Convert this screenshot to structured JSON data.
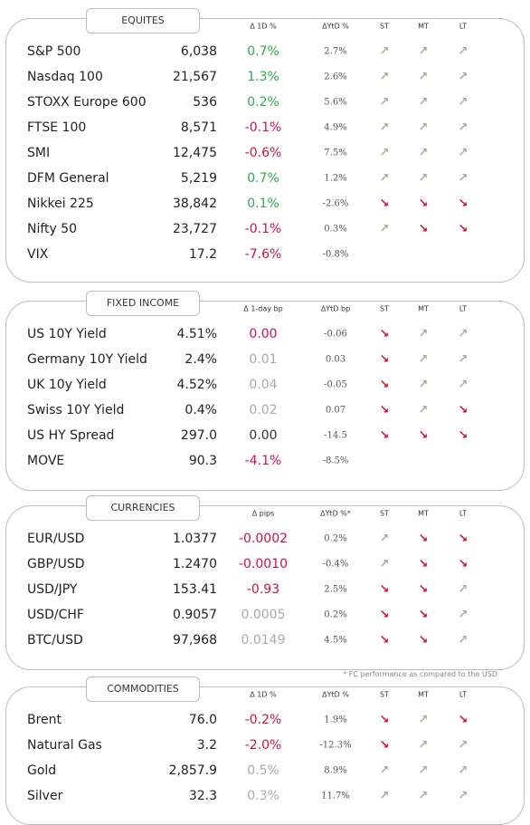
{
  "sections": [
    {
      "title": "EQUITES",
      "headers": [
        "Δ 1D %",
        "ΔYtD %",
        "ST",
        "MT",
        "LT"
      ],
      "rows": [
        {
          "cells": [
            "S&P 500",
            "6,038",
            "0.7%",
            "2.7%",
            "↗",
            "↗",
            "↗"
          ],
          "color": "#2ea84e"
        },
        {
          "cells": [
            "Nasdaq 100",
            "21,567",
            "1.3%",
            "2.6%",
            "↗",
            "↗",
            "↗"
          ],
          "color": "#2ea84e"
        },
        {
          "cells": [
            "STOXX Europe 600",
            "536",
            "0.2%",
            "5.6%",
            "↗",
            "↗",
            "↗"
          ],
          "color": "#2ea84e"
        },
        {
          "cells": [
            "FTSE 100",
            "8,571",
            "-0.1%",
            "4.9%",
            "↗",
            "↗",
            "↗"
          ],
          "color": "#cc1144"
        },
        {
          "cells": [
            "SMI",
            "12,475",
            "-0.6%",
            "7.5%",
            "↗",
            "↗",
            "↗"
          ],
          "color": "#cc1144"
        },
        {
          "cells": [
            "DFM General",
            "5,219",
            "0.7%",
            "1.2%",
            "↗",
            "↗",
            "↗"
          ],
          "color": "#2ea84e"
        },
        {
          "cells": [
            "Nikkei 225",
            "38,842",
            "0.1%",
            "-2.6%",
            "↘",
            "↘",
            "↘"
          ],
          "color": "#2ea84e"
        },
        {
          "cells": [
            "Nifty  50",
            "23,727",
            "-0.1%",
            "0.3%",
            "↗",
            "↘",
            "↘"
          ],
          "color": "#cc1144"
        },
        {
          "cells": [
            "VIX",
            "17.2",
            "-7.6%",
            "-0.8%",
            null,
            null,
            null
          ],
          "color": "#cc1144"
        }
      ]
    },
    {
      "title": "FIXED INCOME",
      "headers": [
        "Δ 1-day bp",
        "ΔYtD bp",
        "ST",
        "MT",
        "LT"
      ],
      "rows": [
        {
          "cells": [
            "US 10Y Yield",
            "4.51%",
            "0.00",
            "-0.06",
            "↘",
            "↗",
            "↗"
          ],
          "color": "#cc1144"
        },
        {
          "cells": [
            "Germany 10Y Yield",
            "2.4%",
            "0.01",
            "0.03",
            "↘",
            "↗",
            "↗"
          ],
          "color": "#aaaaaa"
        },
        {
          "cells": [
            "UK 10y Yield",
            "4.52%",
            "0.04",
            "-0.05",
            "↘",
            "↗",
            "↗"
          ],
          "color": "#aaaaaa"
        },
        {
          "cells": [
            "Swiss 10Y Yield",
            "0.4%",
            "0.02",
            "0.07",
            "↘",
            "↗",
            "↘"
          ],
          "color": "#aaaaaa"
        },
        {
          "cells": [
            "US HY Spread",
            "297.0",
            "0.00",
            "-14.5",
            "↘",
            "↘",
            "↘"
          ],
          "color": "#333333"
        },
        {
          "cells": [
            "MOVE",
            "90.3",
            "-4.1%",
            "-8.5%",
            null,
            null,
            null
          ],
          "color": "#cc1144"
        }
      ]
    },
    {
      "title": "CURRENCIES",
      "headers": [
        "Δ pips",
        "ΔYtD %*",
        "ST",
        "MT",
        "LT"
      ],
      "rows": [
        {
          "cells": [
            "EUR/USD",
            "1.0377",
            "-0.0002",
            "0.2%",
            "↗",
            "↘",
            "↘"
          ],
          "color": "#cc1144"
        },
        {
          "cells": [
            "GBP/USD",
            "1.2470",
            "-0.0010",
            "-0.4%",
            "↗",
            "↘",
            "↘"
          ],
          "color": "#cc1144"
        },
        {
          "cells": [
            "USD/JPY",
            "153.41",
            "-0.93",
            "2.5%",
            "↘",
            "↘",
            "↗"
          ],
          "color": "#cc1144"
        },
        {
          "cells": [
            "USD/CHF",
            "0.9057",
            "0.0005",
            "0.2%",
            "↘",
            "↘",
            "↗"
          ],
          "color": "#aaaaaa"
        },
        {
          "cells": [
            "BTC/USD",
            "97,968",
            "0.0149",
            "4.5%",
            "↘",
            "↘",
            "↗"
          ],
          "color": "#aaaaaa"
        }
      ]
    },
    {
      "title": "COMMODITIES",
      "headers": [
        "Δ 1D %",
        "ΔYtD %",
        "ST",
        "MT",
        "LT"
      ],
      "rows": [
        {
          "cells": [
            "Brent",
            "76.0",
            "-0.2%",
            "1.9%",
            "↘",
            "↗",
            "↘"
          ],
          "color": "#cc1144"
        },
        {
          "cells": [
            "Natural Gas",
            "3.2",
            "-2.0%",
            "-12.3%",
            "↘",
            "↗",
            "↗"
          ],
          "color": "#cc1144"
        },
        {
          "cells": [
            "Gold",
            "2,857.9",
            "0.5%",
            "8.9%",
            "↗",
            "↗",
            "↗"
          ],
          "color": "#aaaaaa"
        },
        {
          "cells": [
            "Silver",
            "32.3",
            "0.3%",
            "11.7%",
            "↗",
            "↗",
            "↗"
          ],
          "color": "#aaaaaa"
        }
      ]
    }
  ],
  "footnote": "* FC performance as compared to the USD"
}
